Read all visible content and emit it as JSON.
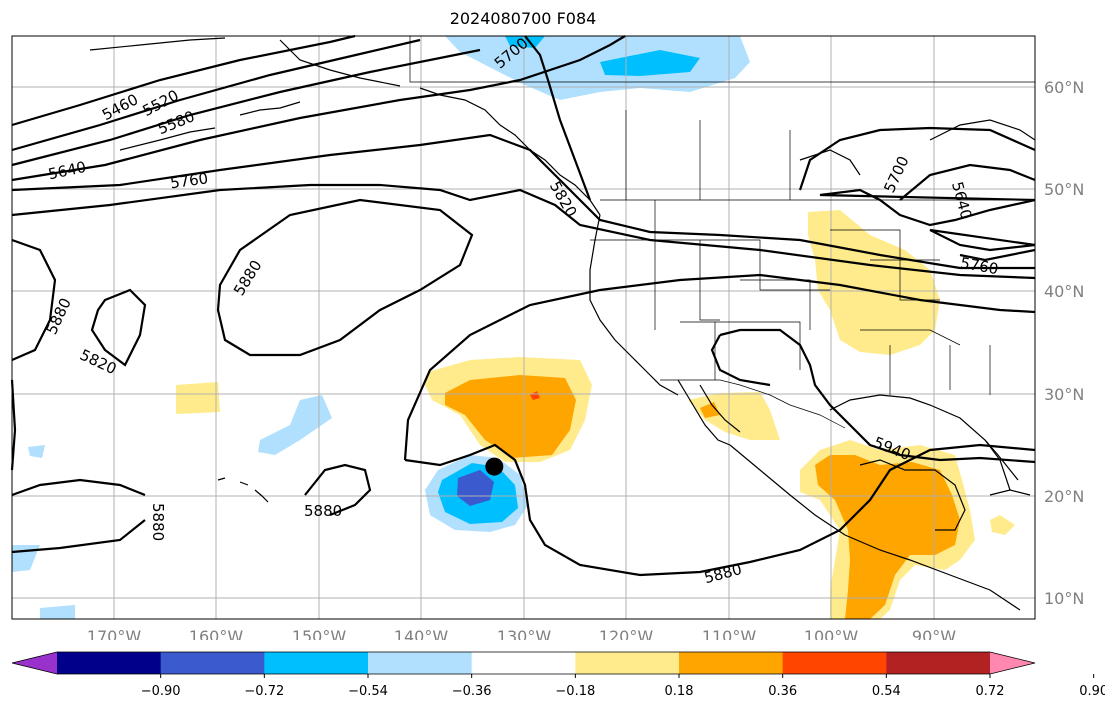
{
  "title": "2024080700 F084",
  "map": {
    "lon_labels": [
      "170°W",
      "160°W",
      "150°W",
      "140°W",
      "130°W",
      "120°W",
      "110°W",
      "100°W",
      "90°W"
    ],
    "lat_labels": [
      "60°N",
      "50°N",
      "40°N",
      "30°N",
      "20°N",
      "10°N"
    ],
    "contour_labels": [
      "5460",
      "5520",
      "5580",
      "5640",
      "5760",
      "5700",
      "5820",
      "5880",
      "5880",
      "5820",
      "5880",
      "5880",
      "5880",
      "5940",
      "5700",
      "5640",
      "5760"
    ],
    "storm_marker": {
      "lon": -132.9,
      "lat": 22.9
    }
  },
  "colorbar": {
    "colors": [
      "#9932cc",
      "#00008b",
      "#3a5acd",
      "#00bfff",
      "#b0e0fe",
      "#ffffff",
      "#ffeb8c",
      "#ffa500",
      "#ff4500",
      "#b22222",
      "#ff88b0"
    ],
    "ticks": [
      "−0.90",
      "−0.72",
      "−0.54",
      "−0.36",
      "−0.18",
      "0.18",
      "0.36",
      "0.54",
      "0.72",
      "0.90"
    ]
  }
}
